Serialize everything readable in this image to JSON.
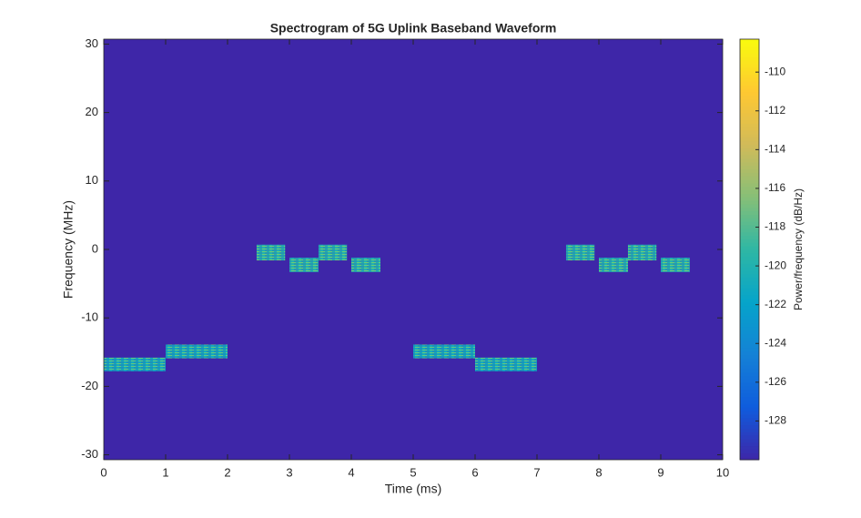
{
  "chart_data": {
    "type": "spectrogram",
    "title": "Spectrogram of 5G Uplink Baseband Waveform",
    "xlabel": "Time (ms)",
    "ylabel": "Frequency (MHz)",
    "colorbar_label": "Power/frequency (dB/Hz)",
    "xlim": [
      0,
      10
    ],
    "xticks": [
      0,
      1,
      2,
      3,
      4,
      5,
      6,
      7,
      8,
      9,
      10
    ],
    "ylim": [
      -30.72,
      30.72
    ],
    "yticks": [
      -30,
      -20,
      -10,
      0,
      10,
      20,
      30
    ],
    "clim": [
      -130,
      -108.3
    ],
    "cticks": [
      -128,
      -126,
      -124,
      -122,
      -120,
      -118,
      -116,
      -114,
      -112,
      -110
    ],
    "colormap": [
      "#3e26a8",
      "#0f5cdd",
      "#1481d6",
      "#06a4ca",
      "#2eb7a4",
      "#87bf77",
      "#d1bb59",
      "#fec832",
      "#f9fb0e"
    ],
    "blocks": [
      {
        "t": [
          0,
          1
        ],
        "f": [
          -17.8,
          -15.8
        ],
        "power": -121
      },
      {
        "t": [
          1,
          2
        ],
        "f": [
          -15.9,
          -13.9
        ],
        "power": -121
      },
      {
        "t": [
          2.47,
          2.93
        ],
        "f": [
          -1.6,
          0.7
        ],
        "power": -120
      },
      {
        "t": [
          3.0,
          3.47
        ],
        "f": [
          -3.3,
          -1.2
        ],
        "power": -120
      },
      {
        "t": [
          3.47,
          3.93
        ],
        "f": [
          -1.6,
          0.7
        ],
        "power": -120
      },
      {
        "t": [
          4.0,
          4.47
        ],
        "f": [
          -3.3,
          -1.2
        ],
        "power": -120
      },
      {
        "t": [
          5,
          6
        ],
        "f": [
          -15.9,
          -13.9
        ],
        "power": -121
      },
      {
        "t": [
          6,
          7
        ],
        "f": [
          -17.8,
          -15.8
        ],
        "power": -121
      },
      {
        "t": [
          7.47,
          7.93
        ],
        "f": [
          -1.6,
          0.7
        ],
        "power": -120
      },
      {
        "t": [
          8.0,
          8.47
        ],
        "f": [
          -3.3,
          -1.2
        ],
        "power": -120
      },
      {
        "t": [
          8.47,
          8.93
        ],
        "f": [
          -1.6,
          0.7
        ],
        "power": -120
      },
      {
        "t": [
          9.0,
          9.47
        ],
        "f": [
          -3.3,
          -1.2
        ],
        "power": -120
      }
    ]
  }
}
